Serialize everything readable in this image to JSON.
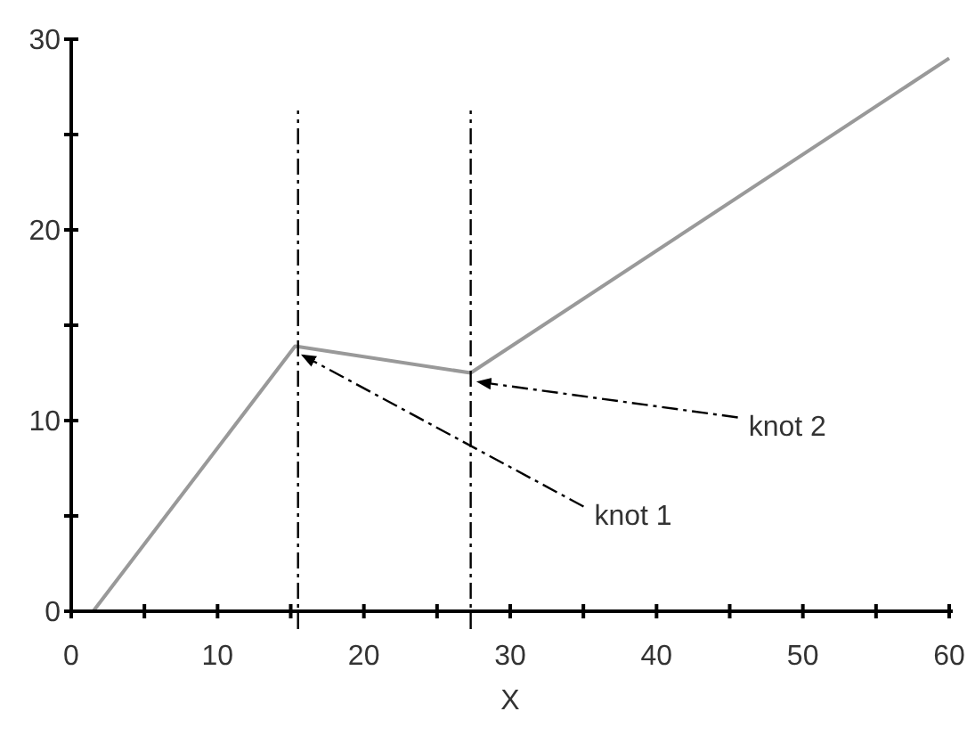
{
  "chart_data": {
    "type": "line",
    "xlabel": "X",
    "series": [
      {
        "color": "#999999",
        "x": [
          1.5,
          15.3,
          27.3,
          60
        ],
        "values": [
          0,
          13.9,
          12.5,
          29
        ]
      }
    ],
    "xlim": [
      0,
      60
    ],
    "ylim": [
      0,
      30
    ],
    "xticks": [
      0,
      {
        "value": 5,
        "label": null
      },
      10,
      {
        "value": 15,
        "label": null
      },
      20,
      {
        "value": 25,
        "label": null
      },
      30,
      {
        "value": 35,
        "label": null
      },
      40,
      {
        "value": 45,
        "label": null
      },
      50,
      {
        "value": 55,
        "label": null
      },
      60
    ],
    "yticks": [
      0,
      {
        "value": 5,
        "label": null
      },
      10,
      {
        "value": 15,
        "label": null
      },
      20,
      {
        "value": 25,
        "label": null
      },
      30
    ],
    "ref_lines": [
      {
        "axis": "x",
        "value": 15.5,
        "label": null,
        "line_style": "dashed",
        "color": "#000000"
      },
      {
        "axis": "x",
        "value": 27.3,
        "label": null,
        "line_style": "dashed",
        "color": "#000000"
      }
    ],
    "annotations": [
      {
        "text": "knot 1",
        "x": 15.3,
        "y": 13.9
      },
      {
        "text": "knot 2",
        "x": 27.3,
        "y": 12.5
      }
    ],
    "grid": false,
    "marker": "none",
    "line_style": "solid"
  }
}
